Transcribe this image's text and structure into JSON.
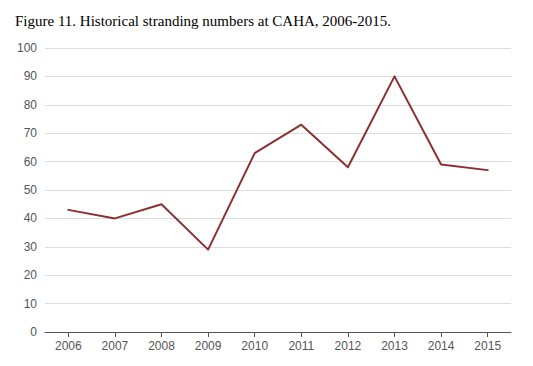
{
  "chart_data": {
    "type": "line",
    "title": "Figure 11. Historical stranding numbers at CAHA, 2006-2015.",
    "x": [
      2006,
      2007,
      2008,
      2009,
      2010,
      2011,
      2012,
      2013,
      2014,
      2015
    ],
    "values": [
      43,
      40,
      45,
      29,
      63,
      73,
      58,
      90,
      59,
      57
    ],
    "color": "#8B3030",
    "xlim": [
      2005.5,
      2015.5
    ],
    "xticks": [
      2006,
      2007,
      2008,
      2009,
      2010,
      2011,
      2012,
      2013,
      2014,
      2015
    ],
    "ylim": [
      0,
      100
    ],
    "yticks": [
      0,
      10,
      20,
      30,
      40,
      50,
      60,
      70,
      80,
      90,
      100
    ],
    "grid": true
  }
}
